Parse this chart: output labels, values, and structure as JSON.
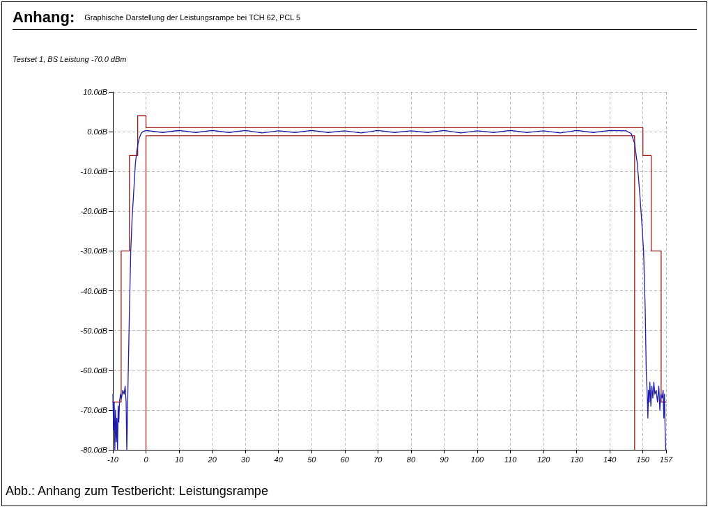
{
  "chart_data": {
    "type": "line",
    "title": "Anhang:",
    "subtitle": "Graphische Darstellung der Leistungsrampe bei TCH 62, PCL 5",
    "annotations": [
      "Testset 1, BS Leistung -70.0 dBm",
      "Abb.: Anhang zum Testbericht: Leistungsrampe"
    ],
    "xlim": [
      -10,
      157
    ],
    "xticks": [
      -10,
      0,
      10,
      20,
      30,
      40,
      50,
      60,
      70,
      80,
      90,
      100,
      110,
      120,
      130,
      140,
      150,
      157
    ],
    "ylim": [
      -80,
      10
    ],
    "yticks": [
      {
        "value": -80,
        "label": "-80.0dB"
      },
      {
        "value": -70,
        "label": "-70.0dB"
      },
      {
        "value": -60,
        "label": "-60.0dB"
      },
      {
        "value": -50,
        "label": "-50.0dB"
      },
      {
        "value": -40,
        "label": "-40.0dB"
      },
      {
        "value": -30,
        "label": "-30.0dB"
      },
      {
        "value": -20,
        "label": "-20.0dB"
      },
      {
        "value": -10,
        "label": "-10.0dB"
      },
      {
        "value": 0,
        "label": "0.0dB"
      },
      {
        "value": 10,
        "label": "10.0dB"
      }
    ],
    "grid": true,
    "marker": "none",
    "line_style": "solid",
    "series": [
      {
        "color": "#a01818",
        "x": [
          -10,
          -7.5,
          -7.5,
          -5,
          -5,
          -2.5,
          -2.5,
          0,
          0,
          150,
          150,
          152.5,
          152.5,
          155.5,
          155.5,
          157
        ],
        "values": [
          -68,
          -68,
          -30,
          -30,
          -6,
          -6,
          4,
          4,
          1,
          1,
          -6,
          -6,
          -30,
          -30,
          -68,
          -68
        ]
      },
      {
        "color": "#a01818",
        "x": [
          0,
          0,
          147.5,
          147.5
        ],
        "values": [
          -80,
          -1,
          -1,
          -80
        ]
      },
      {
        "color": "#1c1ca8",
        "x": [
          -10,
          -9.8,
          -9.6,
          -9.4,
          -9.2,
          -9,
          -8.8,
          -8.6,
          -8.4,
          -8.2,
          -8,
          -7.7,
          -7.4,
          -7,
          -6.6,
          -6.3,
          -6,
          -5.8,
          -5.6,
          -5.4,
          -5.3,
          -5,
          -4.6,
          -4.2,
          -3.7,
          -3.2,
          -2.8,
          -2.4,
          -2,
          -1.5,
          -1,
          0,
          5,
          10,
          15,
          20,
          25,
          30,
          35,
          40,
          45,
          50,
          55,
          60,
          65,
          70,
          75,
          80,
          85,
          90,
          95,
          100,
          105,
          110,
          115,
          120,
          125,
          130,
          135,
          140,
          145,
          146.5,
          147.5,
          148.3,
          149,
          149.6,
          150.2,
          150.7,
          151,
          151.3,
          151.5,
          151.7,
          151.9,
          152.1,
          152.4,
          152.7,
          153,
          153.3,
          153.6,
          154,
          154.4,
          154.8,
          155.1,
          155.4,
          155.8,
          156.1,
          156.3,
          156.5,
          156.7,
          156.9
        ],
        "values": [
          -66,
          -75,
          -68,
          -80,
          -70,
          -78,
          -72,
          -80,
          -69,
          -73,
          -68,
          -66,
          -67,
          -65,
          -66,
          -64,
          -68,
          -80,
          -72,
          -62,
          -58,
          -45,
          -30,
          -22,
          -15,
          -8,
          -5,
          -3,
          -1.5,
          -0.5,
          0,
          0.3,
          -0.2,
          0.3,
          -0.2,
          0.3,
          -0.2,
          0.3,
          -0.3,
          0.2,
          -0.2,
          0.3,
          -0.2,
          0.2,
          -0.3,
          0.3,
          -0.2,
          0.2,
          -0.2,
          0.3,
          -0.3,
          0.2,
          -0.2,
          0.3,
          -0.2,
          0.2,
          -0.3,
          0.3,
          -0.2,
          0.3,
          0.2,
          -0.5,
          -3,
          -8,
          -15,
          -22,
          -30,
          -45,
          -60,
          -66,
          -72,
          -65,
          -68,
          -63,
          -69,
          -64,
          -67,
          -63,
          -66,
          -65,
          -68,
          -64,
          -70,
          -66,
          -67,
          -65,
          -72,
          -66,
          -75,
          -80
        ]
      }
    ]
  }
}
